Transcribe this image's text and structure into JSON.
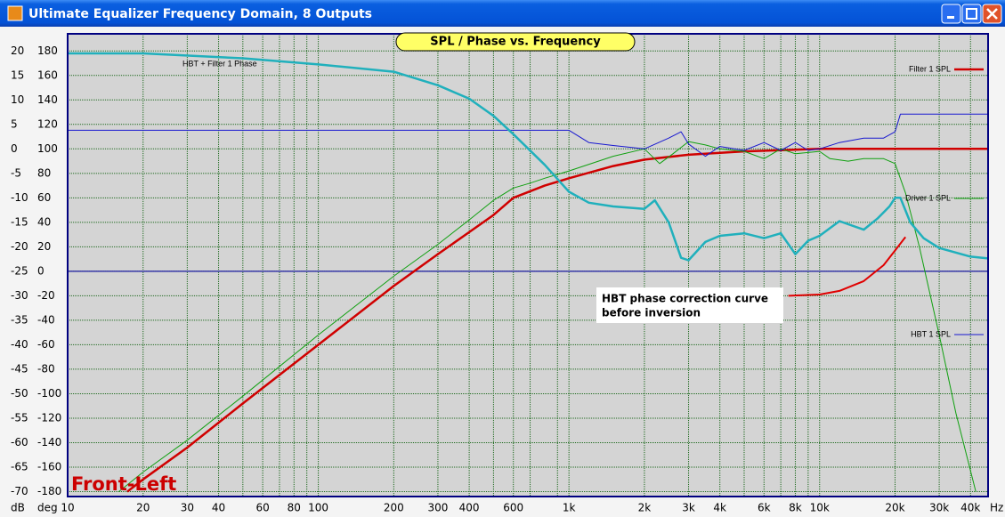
{
  "window": {
    "title": "Ultimate Equalizer Frequency Domain, 8 Outputs"
  },
  "chart_data": {
    "type": "line",
    "title": "SPL / Phase vs. Frequency",
    "channel_label": "Front-Left",
    "annotation": [
      "HBT phase correction curve",
      "before inversion"
    ],
    "xlabel": "Hz",
    "ylabel": "dB",
    "y2label": "deg",
    "xscale": "log",
    "xlim": [
      10,
      47000
    ],
    "xticks": [
      10,
      20,
      30,
      40,
      60,
      80,
      100,
      200,
      300,
      400,
      600,
      {
        "value": 1000,
        "label": "1k"
      },
      {
        "value": 2000,
        "label": "2k"
      },
      {
        "value": 3000,
        "label": "3k"
      },
      {
        "value": 4000,
        "label": "4k"
      },
      {
        "value": 6000,
        "label": "6k"
      },
      {
        "value": 8000,
        "label": "8k"
      },
      {
        "value": 10000,
        "label": "10k"
      },
      {
        "value": 20000,
        "label": "20k"
      },
      {
        "value": 30000,
        "label": "30k"
      },
      {
        "value": 40000,
        "label": "40k"
      }
    ],
    "xminor": [
      50,
      70,
      90,
      500,
      700,
      900,
      5000,
      7000,
      9000
    ],
    "ylim": [
      -71,
      23.5
    ],
    "yticks": [
      20,
      15,
      10,
      5,
      0,
      -5,
      -10,
      -15,
      -20,
      -25,
      -30,
      -35,
      -40,
      -45,
      -50,
      -55,
      -60,
      -65,
      -70
    ],
    "y2lim": [
      -184,
      194
    ],
    "y2ticks": [
      180,
      160,
      140,
      120,
      100,
      80,
      60,
      40,
      20,
      0,
      -20,
      -40,
      -60,
      -80,
      -100,
      -120,
      -140,
      -160,
      -180
    ],
    "grid": true,
    "hline_y2": {
      "value": 0,
      "color": "#1a1aa0"
    },
    "series": [
      {
        "name": "Filter 1 SPL",
        "color": "#d00000",
        "width": 2.5,
        "x": [
          17.3,
          20,
          30,
          50,
          100,
          200,
          300,
          400,
          500,
          600,
          800,
          1000,
          1500,
          2000,
          3000,
          5000,
          10000,
          47000
        ],
        "values": [
          -70,
          -67.5,
          -61,
          -52,
          -40,
          -28,
          -21.5,
          -17,
          -13.5,
          -10,
          -7.5,
          -6,
          -3.5,
          -2.2,
          -1.2,
          -0.5,
          0,
          0
        ]
      },
      {
        "name": "Driver 1 SPL",
        "color": "#10a010",
        "width": 1,
        "x": [
          16,
          20,
          30,
          50,
          100,
          200,
          300,
          400,
          500,
          600,
          700,
          800,
          1000,
          1500,
          2000,
          2300,
          2600,
          3000,
          3500,
          4000,
          5000,
          6000,
          7000,
          8000,
          10000,
          11000,
          13000,
          15000,
          18000,
          20000,
          22000,
          25000,
          30000,
          35000,
          42000
        ],
        "values": [
          -70,
          -66,
          -59.5,
          -50.5,
          -38,
          -26,
          -19.5,
          -14.5,
          -10.5,
          -8,
          -7,
          -6,
          -4.5,
          -1.5,
          0,
          -3,
          -1,
          1.5,
          0.8,
          0,
          -0.5,
          -2,
          0,
          -1,
          -0.5,
          -2,
          -2.5,
          -2,
          -2,
          -3,
          -9,
          -20,
          -38,
          -54,
          -70
        ]
      },
      {
        "name": "HBT 1 SPL",
        "color": "#1818d0",
        "width": 1,
        "x": [
          10,
          1000,
          1200,
          1500,
          2000,
          2500,
          2800,
          3000,
          3500,
          4000,
          5000,
          6000,
          7000,
          8000,
          9000,
          10000,
          12000,
          15000,
          18000,
          20000,
          21000,
          47000
        ],
        "values": [
          3.8,
          3.8,
          1.3,
          0.7,
          0,
          2.2,
          3.5,
          1,
          -1.5,
          0.5,
          -0.3,
          1.3,
          -0.3,
          1.3,
          -0.3,
          0,
          1.3,
          2.2,
          2.2,
          3.5,
          7.1,
          7.1
        ]
      },
      {
        "name": "HBT + Filter 1 Phase",
        "color": "#20b0bc",
        "width": 2.5,
        "axis": "y2",
        "x": [
          10,
          20,
          50,
          100,
          200,
          300,
          400,
          500,
          600,
          800,
          1000,
          1200,
          1500,
          2000,
          2200,
          2500,
          2800,
          3000,
          3500,
          4000,
          5000,
          6000,
          7000,
          8000,
          9000,
          10000,
          12000,
          15000,
          17000,
          19000,
          20000,
          21000,
          23000,
          26000,
          30000,
          40000,
          47000
        ],
        "values": [
          178,
          178,
          174,
          169,
          163,
          152,
          141,
          127,
          112,
          87,
          65,
          56,
          53,
          51,
          58,
          40,
          11,
          9,
          24,
          29,
          31,
          27,
          31,
          14,
          25,
          29,
          41,
          34,
          43,
          53,
          60,
          60,
          40,
          27,
          19,
          12,
          10.5
        ]
      },
      {
        "color": "#e00000",
        "width": 2,
        "axis": "y2",
        "x": [
          7500,
          10000,
          12000,
          15000,
          18000,
          20000,
          22000
        ],
        "values": [
          -20,
          -19,
          -16,
          -8,
          5,
          17,
          28
        ]
      }
    ]
  }
}
